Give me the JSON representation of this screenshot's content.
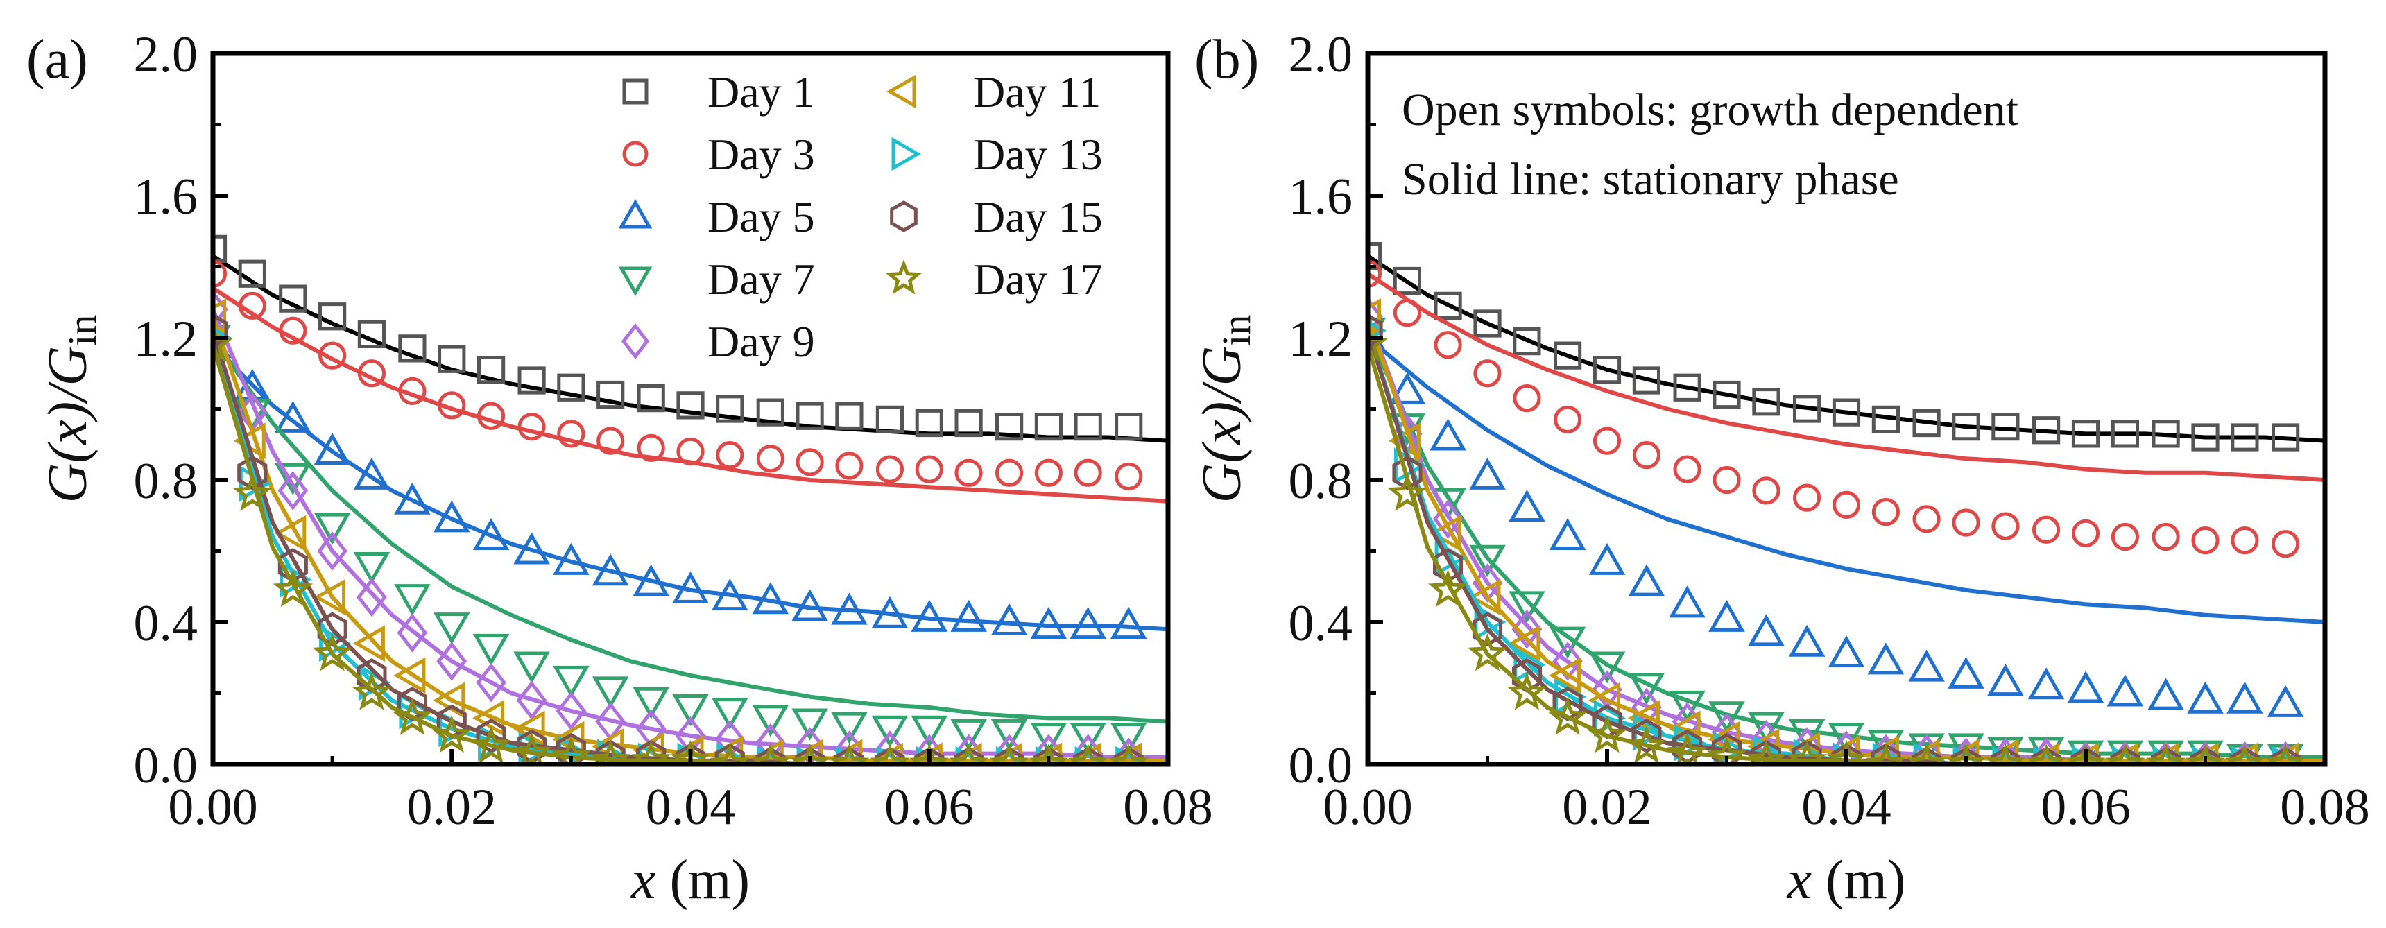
{
  "chart_data": [
    {
      "type": "scatter+line",
      "panel_label": "(a)",
      "xlabel_var": "x",
      "xlabel_unit": " (m)",
      "ylabel_main": "G(x)/G",
      "ylabel_sub": "in",
      "xlim": [
        0,
        0.08
      ],
      "ylim": [
        0,
        2.0
      ],
      "xticks": [
        "0.00",
        "0.02",
        "0.04",
        "0.06",
        "0.08"
      ],
      "yticks": [
        "0.0",
        "0.4",
        "0.8",
        "1.2",
        "1.6",
        "2.0"
      ],
      "legend_placement": "top-right",
      "marker_x": [
        0,
        0.0033,
        0.0067,
        0.01,
        0.0133,
        0.0167,
        0.02,
        0.0233,
        0.0267,
        0.03,
        0.0333,
        0.0367,
        0.04,
        0.0433,
        0.0467,
        0.05,
        0.0533,
        0.0567,
        0.06,
        0.0633,
        0.0667,
        0.07,
        0.0733,
        0.0767
      ],
      "line_x": [
        0,
        0.005,
        0.01,
        0.015,
        0.02,
        0.025,
        0.03,
        0.035,
        0.04,
        0.045,
        0.05,
        0.055,
        0.06,
        0.065,
        0.07,
        0.075,
        0.08
      ],
      "series": [
        {
          "name": "Day 1",
          "marker": "square",
          "color": "#555555",
          "line_color": "#000000",
          "markers": [
            1.45,
            1.38,
            1.31,
            1.26,
            1.21,
            1.17,
            1.14,
            1.11,
            1.08,
            1.06,
            1.04,
            1.03,
            1.01,
            1.0,
            0.99,
            0.98,
            0.98,
            0.97,
            0.96,
            0.96,
            0.95,
            0.95,
            0.95,
            0.95
          ],
          "line": [
            1.43,
            1.32,
            1.24,
            1.17,
            1.11,
            1.07,
            1.04,
            1.01,
            0.99,
            0.97,
            0.95,
            0.94,
            0.93,
            0.93,
            0.92,
            0.92,
            0.91
          ]
        },
        {
          "name": "Day 3",
          "marker": "circle",
          "color": "#e04848",
          "line_color": "#e04848",
          "markers": [
            1.38,
            1.29,
            1.22,
            1.15,
            1.1,
            1.05,
            1.01,
            0.98,
            0.95,
            0.93,
            0.91,
            0.89,
            0.88,
            0.87,
            0.86,
            0.85,
            0.84,
            0.83,
            0.83,
            0.82,
            0.82,
            0.82,
            0.82,
            0.81
          ],
          "line": [
            1.34,
            1.23,
            1.14,
            1.06,
            1.0,
            0.95,
            0.91,
            0.87,
            0.85,
            0.82,
            0.8,
            0.79,
            0.78,
            0.77,
            0.76,
            0.75,
            0.74
          ]
        },
        {
          "name": "Day 5",
          "marker": "triangle-up",
          "color": "#2070d0",
          "line_color": "#2070d0",
          "markers": [
            1.18,
            1.06,
            0.97,
            0.88,
            0.81,
            0.74,
            0.69,
            0.64,
            0.6,
            0.57,
            0.54,
            0.51,
            0.49,
            0.47,
            0.46,
            0.44,
            0.43,
            0.42,
            0.41,
            0.41,
            0.4,
            0.39,
            0.39,
            0.39
          ],
          "line": [
            1.18,
            1.01,
            0.88,
            0.77,
            0.69,
            0.62,
            0.57,
            0.53,
            0.49,
            0.47,
            0.44,
            0.43,
            0.41,
            0.4,
            0.39,
            0.39,
            0.38
          ]
        },
        {
          "name": "Day 7",
          "marker": "triangle-down",
          "color": "#30a46c",
          "line_color": "#30a46c",
          "markers": [
            1.2,
            0.99,
            0.81,
            0.67,
            0.56,
            0.47,
            0.39,
            0.33,
            0.28,
            0.24,
            0.21,
            0.18,
            0.16,
            0.15,
            0.13,
            0.12,
            0.11,
            0.1,
            0.1,
            0.09,
            0.09,
            0.08,
            0.08,
            0.08
          ],
          "line": [
            1.2,
            0.96,
            0.77,
            0.62,
            0.5,
            0.42,
            0.35,
            0.29,
            0.25,
            0.22,
            0.19,
            0.17,
            0.16,
            0.14,
            0.13,
            0.13,
            0.12
          ]
        },
        {
          "name": "Day 9",
          "marker": "diamond",
          "color": "#b070e0",
          "line_color": "#b070e0",
          "markers": [
            1.28,
            0.99,
            0.77,
            0.6,
            0.47,
            0.37,
            0.29,
            0.23,
            0.18,
            0.15,
            0.12,
            0.1,
            0.08,
            0.07,
            0.06,
            0.05,
            0.04,
            0.04,
            0.03,
            0.03,
            0.03,
            0.03,
            0.03,
            0.02
          ],
          "line": [
            1.28,
            0.88,
            0.6,
            0.42,
            0.29,
            0.2,
            0.15,
            0.11,
            0.08,
            0.06,
            0.05,
            0.04,
            0.03,
            0.03,
            0.03,
            0.02,
            0.02
          ]
        },
        {
          "name": "Day 11",
          "marker": "triangle-left",
          "color": "#c89a10",
          "line_color": "#c89a10",
          "markers": [
            1.26,
            0.91,
            0.65,
            0.47,
            0.34,
            0.25,
            0.18,
            0.13,
            0.1,
            0.07,
            0.05,
            0.04,
            0.03,
            0.03,
            0.02,
            0.02,
            0.02,
            0.01,
            0.01,
            0.01,
            0.01,
            0.01,
            0.01,
            0.01
          ],
          "line": [
            1.26,
            0.77,
            0.47,
            0.29,
            0.18,
            0.11,
            0.07,
            0.05,
            0.03,
            0.02,
            0.02,
            0.01,
            0.01,
            0.01,
            0.01,
            0.01,
            0.01
          ]
        },
        {
          "name": "Day 13",
          "marker": "triangle-right",
          "color": "#20c0d0",
          "line_color": "#20c0d0",
          "markers": [
            1.2,
            0.79,
            0.52,
            0.34,
            0.23,
            0.15,
            0.1,
            0.06,
            0.04,
            0.03,
            0.02,
            0.01,
            0.01,
            0.01,
            0,
            0,
            0,
            0,
            0,
            0,
            0,
            0,
            0,
            0
          ],
          "line": [
            1.2,
            0.64,
            0.34,
            0.18,
            0.1,
            0.05,
            0.03,
            0.02,
            0.01,
            0,
            0,
            0,
            0,
            0,
            0,
            0,
            0
          ]
        },
        {
          "name": "Day 15",
          "marker": "hexagon",
          "color": "#7a5252",
          "line_color": "#7a5252",
          "markers": [
            1.22,
            0.82,
            0.56,
            0.38,
            0.25,
            0.17,
            0.12,
            0.08,
            0.05,
            0.04,
            0.02,
            0.02,
            0.01,
            0.01,
            0,
            0,
            0,
            0,
            0,
            0,
            0,
            0,
            0,
            0
          ],
          "line": [
            1.22,
            0.68,
            0.38,
            0.21,
            0.12,
            0.06,
            0.04,
            0.02,
            0.01,
            0.01,
            0,
            0,
            0,
            0,
            0,
            0,
            0
          ]
        },
        {
          "name": "Day 17",
          "marker": "star",
          "color": "#8a8a12",
          "line_color": "#8a8a12",
          "markers": [
            1.18,
            0.76,
            0.49,
            0.31,
            0.2,
            0.13,
            0.08,
            0.05,
            0.03,
            0.02,
            0.01,
            0.01,
            0.01,
            0,
            0,
            0,
            0,
            0,
            0,
            0,
            0,
            0,
            0,
            0
          ],
          "line": [
            1.18,
            0.61,
            0.31,
            0.16,
            0.08,
            0.04,
            0.02,
            0.01,
            0.01,
            0,
            0,
            0,
            0,
            0,
            0,
            0,
            0
          ]
        }
      ]
    },
    {
      "type": "scatter+line",
      "panel_label": "(b)",
      "xlabel_var": "x",
      "xlabel_unit": " (m)",
      "ylabel_main": "G(x)/G",
      "ylabel_sub": "in",
      "xlim": [
        0,
        0.08
      ],
      "ylim": [
        0,
        2.0
      ],
      "xticks": [
        "0.00",
        "0.02",
        "0.04",
        "0.06",
        "0.08"
      ],
      "yticks": [
        "0.0",
        "0.4",
        "0.8",
        "1.2",
        "1.6",
        "2.0"
      ],
      "annotations": [
        "Open symbols: growth dependent",
        "Solid line: stationary phase"
      ],
      "marker_x": [
        0,
        0.0033,
        0.0067,
        0.01,
        0.0133,
        0.0167,
        0.02,
        0.0233,
        0.0267,
        0.03,
        0.0333,
        0.0367,
        0.04,
        0.0433,
        0.0467,
        0.05,
        0.0533,
        0.0567,
        0.06,
        0.0633,
        0.0667,
        0.07,
        0.0733,
        0.0767
      ],
      "line_x": [
        0,
        0.005,
        0.01,
        0.015,
        0.02,
        0.025,
        0.03,
        0.035,
        0.04,
        0.045,
        0.05,
        0.055,
        0.06,
        0.065,
        0.07,
        0.075,
        0.08
      ],
      "series": [
        {
          "name": "Day 1",
          "marker": "square",
          "color": "#555555",
          "line_color": "#000000",
          "markers": [
            1.43,
            1.36,
            1.29,
            1.24,
            1.19,
            1.15,
            1.11,
            1.08,
            1.06,
            1.04,
            1.02,
            1.0,
            0.99,
            0.97,
            0.96,
            0.95,
            0.95,
            0.94,
            0.93,
            0.93,
            0.93,
            0.92,
            0.92,
            0.92
          ],
          "line": [
            1.43,
            1.32,
            1.24,
            1.17,
            1.11,
            1.07,
            1.04,
            1.01,
            0.99,
            0.97,
            0.95,
            0.94,
            0.93,
            0.93,
            0.92,
            0.92,
            0.91
          ]
        },
        {
          "name": "Day 3",
          "marker": "circle",
          "color": "#e04848",
          "line_color": "#e04848",
          "markers": [
            1.38,
            1.27,
            1.18,
            1.1,
            1.03,
            0.97,
            0.91,
            0.87,
            0.83,
            0.8,
            0.77,
            0.75,
            0.73,
            0.71,
            0.69,
            0.68,
            0.67,
            0.66,
            0.65,
            0.64,
            0.64,
            0.63,
            0.63,
            0.62
          ],
          "line": [
            1.38,
            1.27,
            1.18,
            1.11,
            1.05,
            1.0,
            0.96,
            0.93,
            0.9,
            0.88,
            0.86,
            0.85,
            0.83,
            0.82,
            0.82,
            0.81,
            0.8
          ]
        },
        {
          "name": "Day 5",
          "marker": "triangle-up",
          "color": "#2070d0",
          "line_color": "#2070d0",
          "markers": [
            1.2,
            1.05,
            0.92,
            0.81,
            0.72,
            0.64,
            0.57,
            0.51,
            0.45,
            0.41,
            0.37,
            0.34,
            0.31,
            0.29,
            0.27,
            0.25,
            0.23,
            0.22,
            0.21,
            0.2,
            0.19,
            0.18,
            0.18,
            0.17
          ],
          "line": [
            1.2,
            1.06,
            0.94,
            0.84,
            0.76,
            0.69,
            0.64,
            0.59,
            0.55,
            0.52,
            0.49,
            0.47,
            0.45,
            0.44,
            0.42,
            0.41,
            0.4
          ]
        },
        {
          "name": "Day 7",
          "marker": "triangle-down",
          "color": "#30a46c",
          "line_color": "#30a46c",
          "markers": [
            1.22,
            0.95,
            0.74,
            0.58,
            0.45,
            0.35,
            0.28,
            0.22,
            0.17,
            0.14,
            0.11,
            0.09,
            0.08,
            0.06,
            0.05,
            0.05,
            0.04,
            0.04,
            0.03,
            0.03,
            0.03,
            0.03,
            0.02,
            0.02
          ],
          "line": [
            1.22,
            0.84,
            0.58,
            0.4,
            0.28,
            0.2,
            0.14,
            0.1,
            0.08,
            0.06,
            0.05,
            0.04,
            0.03,
            0.03,
            0.03,
            0.02,
            0.02
          ]
        },
        {
          "name": "Day 9",
          "marker": "diamond",
          "color": "#b070e0",
          "line_color": "#b070e0",
          "markers": [
            1.26,
            0.93,
            0.69,
            0.51,
            0.38,
            0.29,
            0.21,
            0.16,
            0.12,
            0.09,
            0.07,
            0.05,
            0.04,
            0.03,
            0.03,
            0.02,
            0.02,
            0.02,
            0.01,
            0.01,
            0.01,
            0.01,
            0.01,
            0.01
          ],
          "line": [
            1.26,
            0.8,
            0.51,
            0.33,
            0.21,
            0.14,
            0.09,
            0.06,
            0.04,
            0.03,
            0.02,
            0.02,
            0.01,
            0.01,
            0.01,
            0.01,
            0.01
          ]
        },
        {
          "name": "Day 11",
          "marker": "triangle-left",
          "color": "#c89a10",
          "line_color": "#c89a10",
          "markers": [
            1.26,
            0.91,
            0.65,
            0.47,
            0.34,
            0.25,
            0.18,
            0.13,
            0.1,
            0.07,
            0.05,
            0.04,
            0.03,
            0.03,
            0.02,
            0.02,
            0.02,
            0.01,
            0.01,
            0.01,
            0.01,
            0.01,
            0.01,
            0.01
          ],
          "line": [
            1.26,
            0.77,
            0.47,
            0.29,
            0.18,
            0.11,
            0.07,
            0.05,
            0.03,
            0.02,
            0.02,
            0.01,
            0.01,
            0.01,
            0.01,
            0.01,
            0.01
          ]
        },
        {
          "name": "Day 13",
          "marker": "triangle-right",
          "color": "#20c0d0",
          "line_color": "#20c0d0",
          "markers": [
            1.22,
            0.84,
            0.58,
            0.4,
            0.28,
            0.19,
            0.13,
            0.09,
            0.06,
            0.04,
            0.03,
            0.02,
            0.01,
            0.01,
            0.01,
            0,
            0,
            0,
            0,
            0,
            0,
            0,
            0,
            0
          ],
          "line": [
            1.22,
            0.7,
            0.4,
            0.23,
            0.13,
            0.08,
            0.04,
            0.03,
            0.01,
            0.01,
            0,
            0,
            0,
            0,
            0,
            0,
            0
          ]
        },
        {
          "name": "Day 15",
          "marker": "hexagon",
          "color": "#7a5252",
          "line_color": "#7a5252",
          "markers": [
            1.22,
            0.82,
            0.56,
            0.38,
            0.25,
            0.17,
            0.12,
            0.08,
            0.05,
            0.04,
            0.02,
            0.02,
            0.01,
            0.01,
            0,
            0,
            0,
            0,
            0,
            0,
            0,
            0,
            0,
            0
          ],
          "line": [
            1.22,
            0.68,
            0.38,
            0.21,
            0.12,
            0.06,
            0.04,
            0.02,
            0.01,
            0.01,
            0,
            0,
            0,
            0,
            0,
            0,
            0
          ]
        },
        {
          "name": "Day 17",
          "marker": "star",
          "color": "#8a8a12",
          "line_color": "#8a8a12",
          "markers": [
            1.18,
            0.76,
            0.49,
            0.31,
            0.2,
            0.13,
            0.08,
            0.05,
            0.03,
            0.02,
            0.01,
            0.01,
            0.01,
            0,
            0,
            0,
            0,
            0,
            0,
            0,
            0,
            0,
            0,
            0
          ],
          "line": [
            1.18,
            0.61,
            0.31,
            0.16,
            0.08,
            0.04,
            0.02,
            0.01,
            0.01,
            0,
            0,
            0,
            0,
            0,
            0,
            0,
            0
          ]
        }
      ]
    }
  ]
}
